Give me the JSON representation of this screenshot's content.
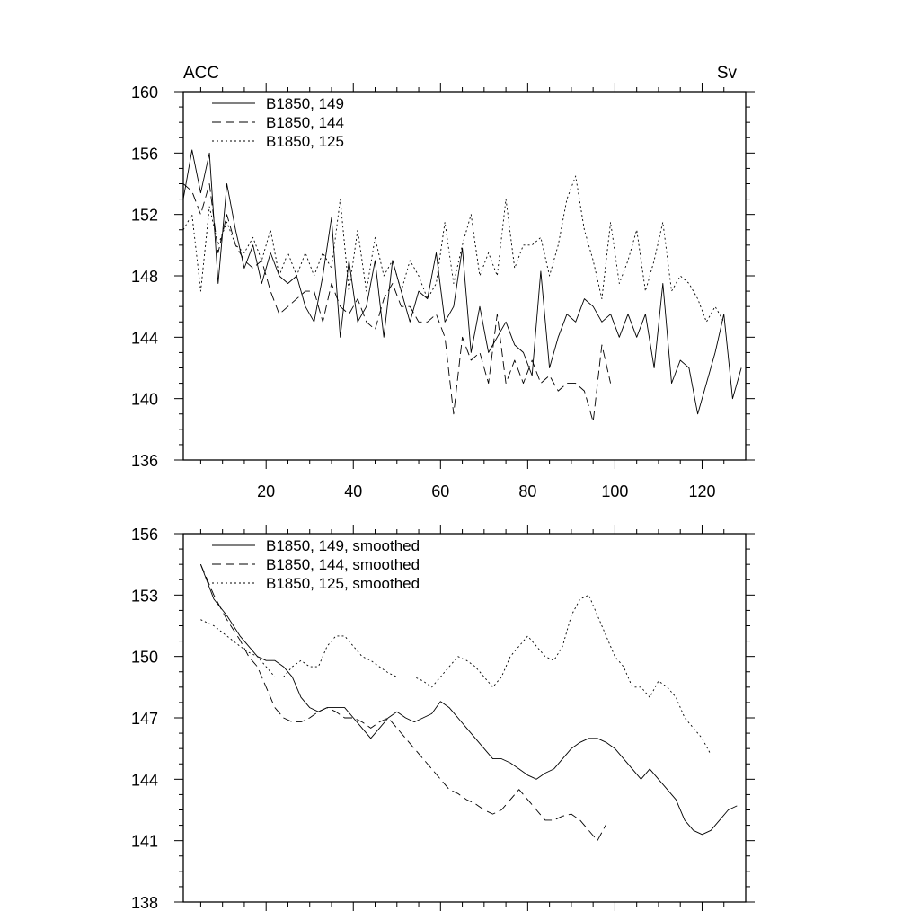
{
  "chart_data": [
    {
      "type": "line",
      "title": "",
      "left_label": "ACC",
      "right_label": "Sv",
      "xlabel": "",
      "ylabel": "",
      "xlim": [
        1,
        130
      ],
      "ylim": [
        136,
        160
      ],
      "xticks": [
        20,
        40,
        60,
        80,
        100,
        120
      ],
      "xtick_labels": [
        "20",
        "40",
        "60",
        "80",
        "100",
        "120"
      ],
      "yticks": [
        136,
        140,
        144,
        148,
        152,
        156,
        160
      ],
      "ytick_labels": [
        "136",
        "140",
        "144",
        "148",
        "152",
        "156",
        "160"
      ],
      "legend_position": "top-left",
      "series": [
        {
          "name": "B1850, 149",
          "style": "solid",
          "x": [
            1,
            3,
            5,
            7,
            9,
            11,
            13,
            15,
            17,
            19,
            21,
            23,
            25,
            27,
            29,
            31,
            33,
            35,
            37,
            39,
            41,
            43,
            45,
            47,
            49,
            51,
            53,
            55,
            57,
            59,
            61,
            63,
            65,
            67,
            69,
            71,
            73,
            75,
            77,
            79,
            81,
            83,
            85,
            87,
            89,
            91,
            93,
            95,
            97,
            99,
            101,
            103,
            105,
            107,
            109,
            111,
            113,
            115,
            117,
            119,
            121,
            123,
            125,
            127,
            129
          ],
          "values": [
            153.0,
            156.2,
            153.4,
            156.0,
            147.5,
            154.0,
            151.0,
            148.5,
            150.0,
            147.5,
            149.5,
            148.0,
            147.5,
            148.0,
            146.0,
            145.0,
            148.0,
            151.8,
            144.0,
            149.0,
            145.0,
            146.0,
            149.0,
            144.0,
            149.0,
            147.0,
            145.0,
            147.0,
            146.5,
            149.5,
            145.0,
            146.0,
            149.8,
            143.0,
            146.0,
            143.0,
            144.0,
            145.0,
            143.5,
            143.0,
            141.5,
            148.3,
            142.0,
            144.0,
            145.5,
            145.0,
            146.5,
            146.0,
            145.0,
            145.5,
            144.0,
            145.5,
            144.0,
            145.5,
            142.0,
            147.5,
            141.0,
            142.5,
            142.0,
            139.0,
            141.0,
            143.0,
            145.5,
            140.0,
            142.0
          ]
        },
        {
          "name": "B1850, 144",
          "style": "dashed",
          "x": [
            1,
            3,
            5,
            7,
            9,
            11,
            13,
            15,
            17,
            19,
            21,
            23,
            25,
            27,
            29,
            31,
            33,
            35,
            37,
            39,
            41,
            43,
            45,
            47,
            49,
            51,
            53,
            55,
            57,
            59,
            61,
            63,
            65,
            67,
            69,
            71,
            73,
            75,
            77,
            79,
            81,
            83,
            85,
            87,
            89,
            91,
            93,
            95,
            97,
            99
          ],
          "values": [
            154.0,
            153.5,
            152.0,
            154.0,
            149.5,
            152.0,
            150.0,
            149.0,
            148.5,
            149.0,
            147.0,
            145.5,
            146.0,
            146.5,
            147.0,
            147.0,
            145.0,
            147.5,
            146.0,
            145.5,
            146.5,
            145.0,
            144.5,
            146.5,
            147.5,
            146.0,
            146.0,
            145.0,
            145.0,
            145.5,
            144.0,
            139.0,
            144.0,
            142.5,
            143.0,
            141.0,
            145.5,
            141.0,
            142.5,
            141.0,
            142.5,
            141.0,
            141.5,
            140.5,
            141.0,
            141.0,
            140.5,
            138.5,
            143.5,
            141.0
          ]
        },
        {
          "name": "B1850, 125",
          "style": "dotted",
          "x": [
            1,
            3,
            5,
            7,
            9,
            11,
            13,
            15,
            17,
            19,
            21,
            23,
            25,
            27,
            29,
            31,
            33,
            35,
            37,
            39,
            41,
            43,
            45,
            47,
            49,
            51,
            53,
            55,
            57,
            59,
            61,
            63,
            65,
            67,
            69,
            71,
            73,
            75,
            77,
            79,
            81,
            83,
            85,
            87,
            89,
            91,
            93,
            95,
            97,
            99,
            101,
            103,
            105,
            107,
            109,
            111,
            113,
            115,
            117,
            119,
            121,
            123,
            125
          ],
          "values": [
            151.0,
            152.0,
            147.0,
            152.5,
            150.0,
            151.5,
            150.0,
            149.5,
            150.5,
            149.0,
            151.0,
            148.0,
            149.5,
            148.0,
            149.5,
            148.0,
            149.5,
            148.5,
            153.0,
            147.0,
            151.0,
            147.0,
            150.5,
            148.0,
            149.0,
            147.0,
            149.0,
            148.0,
            146.5,
            147.5,
            151.5,
            147.5,
            150.0,
            152.0,
            148.0,
            149.5,
            148.0,
            153.0,
            148.5,
            150.0,
            150.0,
            150.5,
            148.0,
            150.0,
            153.0,
            154.5,
            151.0,
            149.0,
            146.5,
            151.5,
            147.5,
            149.0,
            151.0,
            147.0,
            149.0,
            151.5,
            147.0,
            148.0,
            147.5,
            146.5,
            145.0,
            146.0,
            145.0
          ]
        }
      ]
    },
    {
      "type": "line",
      "title": "",
      "xlabel": "",
      "ylabel": "",
      "xlim": [
        1,
        130
      ],
      "ylim": [
        138,
        156
      ],
      "xticks": [
        20,
        40,
        60,
        80,
        100,
        120
      ],
      "yticks": [
        138,
        141,
        144,
        147,
        150,
        153,
        156
      ],
      "ytick_labels": [
        "138",
        "141",
        "144",
        "147",
        "150",
        "153",
        "156"
      ],
      "legend_position": "top-left",
      "series": [
        {
          "name": "B1850, 149, smoothed",
          "style": "solid",
          "x": [
            5,
            8,
            11,
            14,
            16,
            18,
            20,
            22,
            24,
            26,
            28,
            30,
            32,
            34,
            36,
            38,
            40,
            42,
            44,
            46,
            48,
            50,
            52,
            54,
            56,
            58,
            60,
            62,
            64,
            66,
            68,
            70,
            72,
            74,
            76,
            78,
            80,
            82,
            84,
            86,
            88,
            90,
            92,
            94,
            96,
            98,
            100,
            102,
            104,
            106,
            108,
            110,
            112,
            114,
            116,
            118,
            120,
            122,
            124,
            126,
            128
          ],
          "values": [
            154.5,
            152.8,
            152.0,
            151.0,
            150.5,
            150.0,
            149.8,
            149.8,
            149.5,
            149.0,
            148.0,
            147.5,
            147.3,
            147.5,
            147.5,
            147.5,
            147.0,
            146.5,
            146.0,
            146.5,
            147.0,
            147.3,
            147.0,
            146.8,
            147.0,
            147.2,
            147.8,
            147.5,
            147.0,
            146.5,
            146.0,
            145.5,
            145.0,
            145.0,
            144.8,
            144.5,
            144.2,
            144.0,
            144.3,
            144.5,
            145.0,
            145.5,
            145.8,
            146.0,
            146.0,
            145.8,
            145.5,
            145.0,
            144.5,
            144.0,
            144.5,
            144.0,
            143.5,
            143.0,
            142.0,
            141.5,
            141.3,
            141.5,
            142.0,
            142.5,
            142.7
          ]
        },
        {
          "name": "B1850, 144, smoothed",
          "style": "dashed",
          "x": [
            5,
            8,
            11,
            14,
            16,
            18,
            20,
            22,
            24,
            26,
            28,
            30,
            32,
            34,
            36,
            38,
            40,
            42,
            44,
            46,
            48,
            50,
            52,
            54,
            56,
            58,
            60,
            62,
            64,
            66,
            68,
            70,
            72,
            74,
            76,
            78,
            80,
            82,
            84,
            86,
            88,
            90,
            92,
            94,
            96,
            98
          ],
          "values": [
            154.5,
            153.0,
            151.8,
            150.8,
            150.0,
            149.5,
            148.5,
            147.5,
            147.0,
            146.8,
            146.8,
            147.0,
            147.3,
            147.5,
            147.3,
            147.0,
            147.0,
            146.8,
            146.5,
            146.8,
            147.0,
            146.5,
            146.0,
            145.5,
            145.0,
            144.5,
            144.0,
            143.5,
            143.3,
            143.0,
            142.8,
            142.5,
            142.3,
            142.5,
            143.0,
            143.5,
            143.0,
            142.5,
            142.0,
            142.0,
            142.2,
            142.3,
            142.0,
            141.5,
            141.0,
            141.8
          ]
        },
        {
          "name": "B1850, 125, smoothed",
          "style": "dotted",
          "x": [
            5,
            8,
            11,
            14,
            16,
            18,
            20,
            22,
            24,
            26,
            28,
            30,
            32,
            34,
            36,
            38,
            40,
            42,
            44,
            46,
            48,
            50,
            52,
            54,
            56,
            58,
            60,
            62,
            64,
            66,
            68,
            70,
            72,
            74,
            76,
            78,
            80,
            82,
            84,
            86,
            88,
            90,
            92,
            94,
            96,
            98,
            100,
            102,
            104,
            106,
            108,
            110,
            112,
            114,
            116,
            118,
            120,
            122
          ],
          "values": [
            151.8,
            151.5,
            151.0,
            150.5,
            150.2,
            150.0,
            149.5,
            149.0,
            149.0,
            149.5,
            149.8,
            149.5,
            149.5,
            150.5,
            151.0,
            151.0,
            150.5,
            150.0,
            149.8,
            149.5,
            149.2,
            149.0,
            149.0,
            149.0,
            148.8,
            148.5,
            149.0,
            149.5,
            150.0,
            149.8,
            149.5,
            149.0,
            148.5,
            149.0,
            150.0,
            150.5,
            151.0,
            150.5,
            150.0,
            149.8,
            150.5,
            152.0,
            152.8,
            153.0,
            152.0,
            151.0,
            150.0,
            149.5,
            148.5,
            148.5,
            148.0,
            148.8,
            148.5,
            148.0,
            147.0,
            146.5,
            146.0,
            145.2
          ]
        }
      ]
    }
  ]
}
